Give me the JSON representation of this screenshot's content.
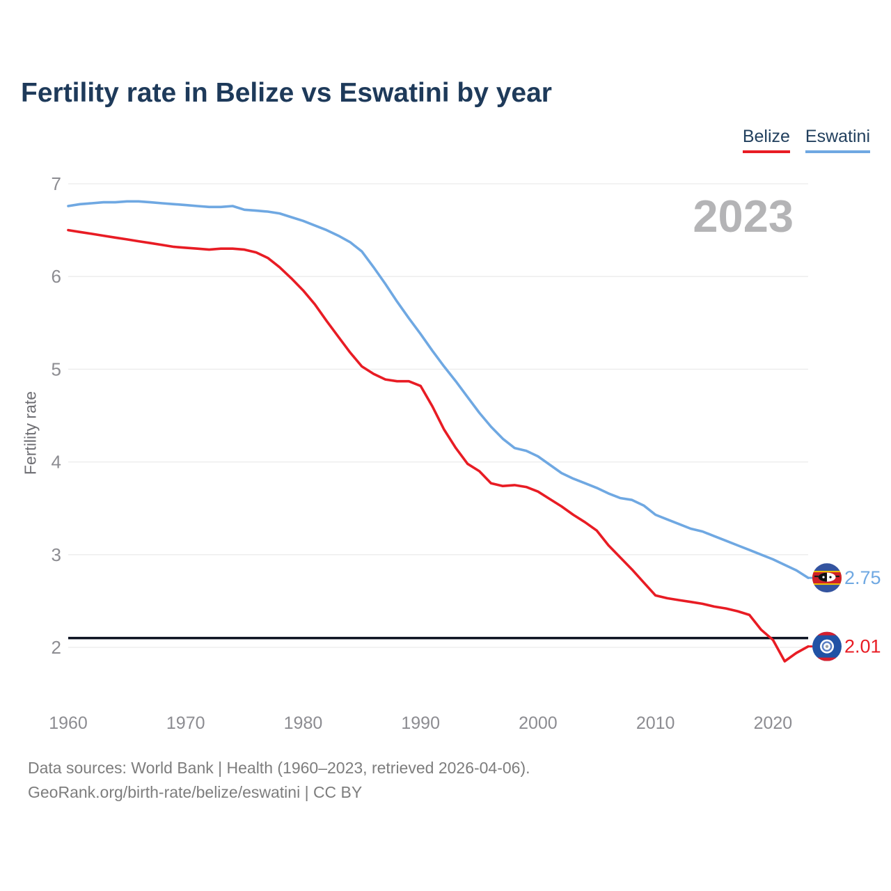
{
  "title": "Fertility rate in Belize vs Eswatini by year",
  "watermark": "2023",
  "legend": [
    {
      "label": "Belize",
      "color": "#e81c24"
    },
    {
      "label": "Eswatini",
      "color": "#6fa8e2"
    }
  ],
  "y_axis": {
    "label": "Fertility rate",
    "ticks": [
      7,
      6,
      5,
      4,
      3,
      2
    ]
  },
  "x_axis": {
    "ticks": [
      1960,
      1970,
      1980,
      1990,
      2000,
      2010,
      2020
    ]
  },
  "reference_line": {
    "value": 2.1,
    "color": "#0d1322"
  },
  "end_labels": [
    {
      "series": "Eswatini",
      "value": "2.75",
      "color": "#6fa8e2",
      "flag": "eswatini-flag-icon"
    },
    {
      "series": "Belize",
      "value": "2.01",
      "color": "#e81c24",
      "flag": "belize-flag-icon"
    }
  ],
  "footer": {
    "line1": "Data sources: World Bank | Health (1960–2023, retrieved 2026-04-06).",
    "line2": "GeoRank.org/birth-rate/belize/eswatini | CC BY"
  },
  "chart_data": {
    "type": "line",
    "title": "Fertility rate in Belize vs Eswatini by year",
    "xlabel": "",
    "ylabel": "Fertility rate",
    "x_range": [
      1960,
      2023
    ],
    "ylim": [
      1.8,
      7
    ],
    "grid": "horizontal",
    "legend_position": "top-right",
    "years": [
      1960,
      1961,
      1962,
      1963,
      1964,
      1965,
      1966,
      1967,
      1968,
      1969,
      1970,
      1971,
      1972,
      1973,
      1974,
      1975,
      1976,
      1977,
      1978,
      1979,
      1980,
      1981,
      1982,
      1983,
      1984,
      1985,
      1986,
      1987,
      1988,
      1989,
      1990,
      1991,
      1992,
      1993,
      1994,
      1995,
      1996,
      1997,
      1998,
      1999,
      2000,
      2001,
      2002,
      2003,
      2004,
      2005,
      2006,
      2007,
      2008,
      2009,
      2010,
      2011,
      2012,
      2013,
      2014,
      2015,
      2016,
      2017,
      2018,
      2019,
      2020,
      2021,
      2022,
      2023
    ],
    "series": [
      {
        "name": "Eswatini",
        "color": "#6fa8e2",
        "end_value": 2.75,
        "values": [
          6.76,
          6.78,
          6.79,
          6.8,
          6.8,
          6.81,
          6.81,
          6.8,
          6.79,
          6.78,
          6.77,
          6.76,
          6.75,
          6.75,
          6.76,
          6.72,
          6.71,
          6.7,
          6.68,
          6.64,
          6.6,
          6.55,
          6.5,
          6.44,
          6.37,
          6.27,
          6.1,
          5.92,
          5.73,
          5.55,
          5.38,
          5.2,
          5.03,
          4.87,
          4.7,
          4.53,
          4.38,
          4.25,
          4.15,
          4.12,
          4.06,
          3.97,
          3.88,
          3.82,
          3.77,
          3.72,
          3.66,
          3.61,
          3.59,
          3.53,
          3.43,
          3.38,
          3.33,
          3.28,
          3.25,
          3.2,
          3.15,
          3.1,
          3.05,
          3.0,
          2.95,
          2.89,
          2.83,
          2.75
        ]
      },
      {
        "name": "Belize",
        "color": "#e81c24",
        "end_value": 2.01,
        "values": [
          6.5,
          6.48,
          6.46,
          6.44,
          6.42,
          6.4,
          6.38,
          6.36,
          6.34,
          6.32,
          6.31,
          6.3,
          6.29,
          6.3,
          6.3,
          6.29,
          6.26,
          6.2,
          6.1,
          5.98,
          5.85,
          5.7,
          5.52,
          5.35,
          5.18,
          5.03,
          4.95,
          4.89,
          4.87,
          4.87,
          4.82,
          4.6,
          4.35,
          4.15,
          3.98,
          3.9,
          3.77,
          3.74,
          3.75,
          3.73,
          3.68,
          3.6,
          3.52,
          3.43,
          3.35,
          3.26,
          3.1,
          2.97,
          2.84,
          2.7,
          2.56,
          2.53,
          2.51,
          2.49,
          2.47,
          2.44,
          2.42,
          2.39,
          2.35,
          2.19,
          2.08,
          1.85,
          1.94,
          2.01
        ]
      }
    ],
    "annotations": {
      "replacement_fertility_line": 2.1
    }
  }
}
